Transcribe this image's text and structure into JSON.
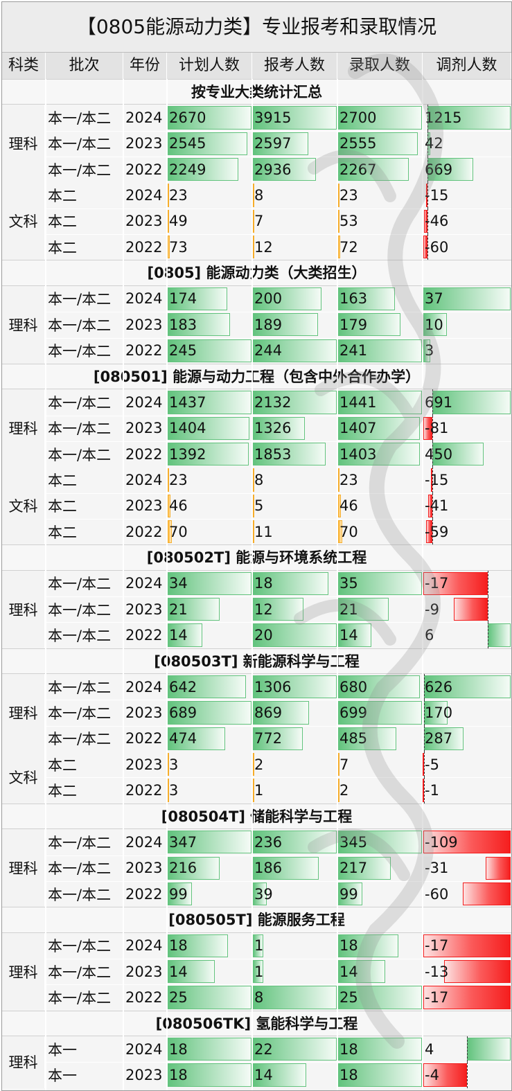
{
  "title": "【0805能源动力类】专业报考和录取情况",
  "headers": [
    "科类",
    "批次",
    "年份",
    "计划人数",
    "报考人数",
    "录取人数",
    "调剂人数"
  ],
  "sections": [
    {
      "title": "按专业大类统计汇总",
      "groups": [
        {
          "label": "理科",
          "rows": [
            {
              "batch": "本一/本二",
              "year": "2024",
              "plan": 2670,
              "apply": 3915,
              "admit": 2700,
              "adjust": 1215
            },
            {
              "batch": "本一/本二",
              "year": "2023",
              "plan": 2545,
              "apply": 2597,
              "admit": 2555,
              "adjust": 42
            },
            {
              "batch": "本一/本二",
              "year": "2022",
              "plan": 2249,
              "apply": 2936,
              "admit": 2267,
              "adjust": 669
            }
          ]
        },
        {
          "label": "文科",
          "rows": [
            {
              "batch": "本二",
              "year": "2024",
              "plan": 23,
              "apply": 8,
              "admit": 23,
              "adjust": -15
            },
            {
              "batch": "本二",
              "year": "2023",
              "plan": 49,
              "apply": 7,
              "admit": 53,
              "adjust": -46
            },
            {
              "batch": "本二",
              "year": "2022",
              "plan": 73,
              "apply": 12,
              "admit": 72,
              "adjust": -60
            }
          ]
        }
      ]
    },
    {
      "title": "[0805] 能源动力类（大类招生）",
      "groups": [
        {
          "label": "理科",
          "rows": [
            {
              "batch": "本一/本二",
              "year": "2024",
              "plan": 174,
              "apply": 200,
              "admit": 163,
              "adjust": 37
            },
            {
              "batch": "本一/本二",
              "year": "2023",
              "plan": 183,
              "apply": 189,
              "admit": 179,
              "adjust": 10
            },
            {
              "batch": "本一/本二",
              "year": "2022",
              "plan": 245,
              "apply": 244,
              "admit": 241,
              "adjust": 3
            }
          ]
        }
      ]
    },
    {
      "title": "[080501] 能源与动力工程（包含中外合作办学）",
      "groups": [
        {
          "label": "理科",
          "rows": [
            {
              "batch": "本一/本二",
              "year": "2024",
              "plan": 1437,
              "apply": 2132,
              "admit": 1441,
              "adjust": 691
            },
            {
              "batch": "本一/本二",
              "year": "2023",
              "plan": 1404,
              "apply": 1326,
              "admit": 1407,
              "adjust": -81
            },
            {
              "batch": "本一/本二",
              "year": "2022",
              "plan": 1392,
              "apply": 1853,
              "admit": 1403,
              "adjust": 450
            }
          ]
        },
        {
          "label": "文科",
          "rows": [
            {
              "batch": "本二",
              "year": "2024",
              "plan": 23,
              "apply": 8,
              "admit": 23,
              "adjust": -15
            },
            {
              "batch": "本二",
              "year": "2023",
              "plan": 46,
              "apply": 5,
              "admit": 46,
              "adjust": -41
            },
            {
              "batch": "本二",
              "year": "2022",
              "plan": 70,
              "apply": 11,
              "admit": 70,
              "adjust": -59
            }
          ]
        }
      ]
    },
    {
      "title": "[080502T] 能源与环境系统工程",
      "groups": [
        {
          "label": "理科",
          "rows": [
            {
              "batch": "本一/本二",
              "year": "2024",
              "plan": 34,
              "apply": 18,
              "admit": 35,
              "adjust": -17
            },
            {
              "batch": "本一/本二",
              "year": "2023",
              "plan": 21,
              "apply": 12,
              "admit": 21,
              "adjust": -9
            },
            {
              "batch": "本一/本二",
              "year": "2022",
              "plan": 14,
              "apply": 20,
              "admit": 14,
              "adjust": 6
            }
          ]
        }
      ]
    },
    {
      "title": "[080503T] 新能源科学与工程",
      "groups": [
        {
          "label": "理科",
          "rows": [
            {
              "batch": "本一/本二",
              "year": "2024",
              "plan": 642,
              "apply": 1306,
              "admit": 680,
              "adjust": 626
            },
            {
              "batch": "本一/本二",
              "year": "2023",
              "plan": 689,
              "apply": 869,
              "admit": 699,
              "adjust": 170
            },
            {
              "batch": "本一/本二",
              "year": "2022",
              "plan": 474,
              "apply": 772,
              "admit": 485,
              "adjust": 287
            }
          ]
        },
        {
          "label": "文科",
          "rows": [
            {
              "batch": "本二",
              "year": "2023",
              "plan": 3,
              "apply": 2,
              "admit": 7,
              "adjust": -5
            },
            {
              "batch": "本二",
              "year": "2022",
              "plan": 3,
              "apply": 1,
              "admit": 2,
              "adjust": -1
            }
          ]
        }
      ]
    },
    {
      "title": "[080504T] 储能科学与工程",
      "groups": [
        {
          "label": "理科",
          "rows": [
            {
              "batch": "本一/本二",
              "year": "2024",
              "plan": 347,
              "apply": 236,
              "admit": 345,
              "adjust": -109
            },
            {
              "batch": "本一/本二",
              "year": "2023",
              "plan": 216,
              "apply": 186,
              "admit": 217,
              "adjust": -31
            },
            {
              "batch": "本一/本二",
              "year": "2022",
              "plan": 99,
              "apply": 39,
              "admit": 99,
              "adjust": -60
            }
          ]
        }
      ]
    },
    {
      "title": "[080505T] 能源服务工程",
      "groups": [
        {
          "label": "理科",
          "rows": [
            {
              "batch": "本一/本二",
              "year": "2024",
              "plan": 18,
              "apply": 1,
              "admit": 18,
              "adjust": -17
            },
            {
              "batch": "本一/本二",
              "year": "2023",
              "plan": 14,
              "apply": 1,
              "admit": 14,
              "adjust": -13
            },
            {
              "batch": "本一/本二",
              "year": "2022",
              "plan": 25,
              "apply": 8,
              "admit": 25,
              "adjust": -17
            }
          ]
        }
      ]
    },
    {
      "title": "[080506TK] 氢能科学与工程",
      "groups": [
        {
          "label": "理科",
          "rows": [
            {
              "batch": "本一",
              "year": "2024",
              "plan": 18,
              "apply": 22,
              "admit": 18,
              "adjust": 4
            },
            {
              "batch": "本一",
              "year": "2023",
              "plan": 18,
              "apply": 14,
              "admit": 18,
              "adjust": -4
            }
          ]
        }
      ]
    }
  ],
  "colors": {
    "science_bar": "#62c37d",
    "liberal_arts_bar": "#fdb532",
    "negative_bar": "#f31c1c",
    "header_bg": "#e3e3e3"
  }
}
